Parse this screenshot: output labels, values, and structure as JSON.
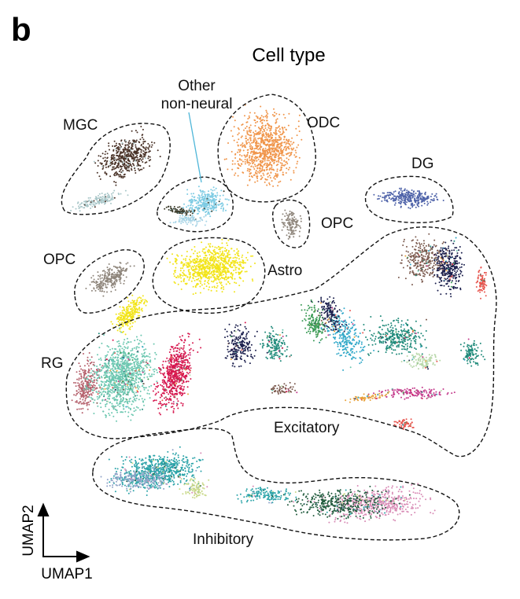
{
  "panel_letter": "b",
  "chart_data": {
    "type": "scatter",
    "title": "Cell type",
    "xlabel": "UMAP1",
    "ylabel": "UMAP2",
    "grid": false,
    "legend": "none (clusters labelled directly)",
    "clusters": [
      {
        "name": "MGC",
        "colors": [
          "#4a3328",
          "#a9c7c9"
        ]
      },
      {
        "name": "Other non-neural",
        "colors": [
          "#7dcbe3",
          "#3b3b2a",
          "#a8d4e6"
        ]
      },
      {
        "name": "ODC",
        "colors": [
          "#f0954a"
        ]
      },
      {
        "name": "OPC",
        "colors": [
          "#8f867c"
        ]
      },
      {
        "name": "DG",
        "colors": [
          "#4f63a9"
        ]
      },
      {
        "name": "Astro",
        "colors": [
          "#f2e418"
        ]
      },
      {
        "name": "RG",
        "colors": [
          "#b5606c"
        ]
      },
      {
        "name": "Excitatory",
        "colors": [
          "#6cc7b0",
          "#d6174e",
          "#1b1f4d",
          "#1f8a7a",
          "#7b5a4e",
          "#e8564f",
          "#31a8c9",
          "#3a9a55",
          "#c43b8c",
          "#e8a33c",
          "#b7d7a8"
        ]
      },
      {
        "name": "Inhibitory",
        "colors": [
          "#2aa3a8",
          "#d88bb5",
          "#1f5a3c",
          "#8fa3c8",
          "#c9d98a"
        ]
      }
    ],
    "labels": {
      "mgc": "MGC",
      "other1": "Other",
      "other2": "non-neural",
      "odc": "ODC",
      "opc_right": "OPC",
      "opc_left": "OPC",
      "dg": "DG",
      "astro": "Astro",
      "rg": "RG",
      "excitatory": "Excitatory",
      "inhibitory": "Inhibitory"
    },
    "pointer_color": "#4fb6d8"
  }
}
